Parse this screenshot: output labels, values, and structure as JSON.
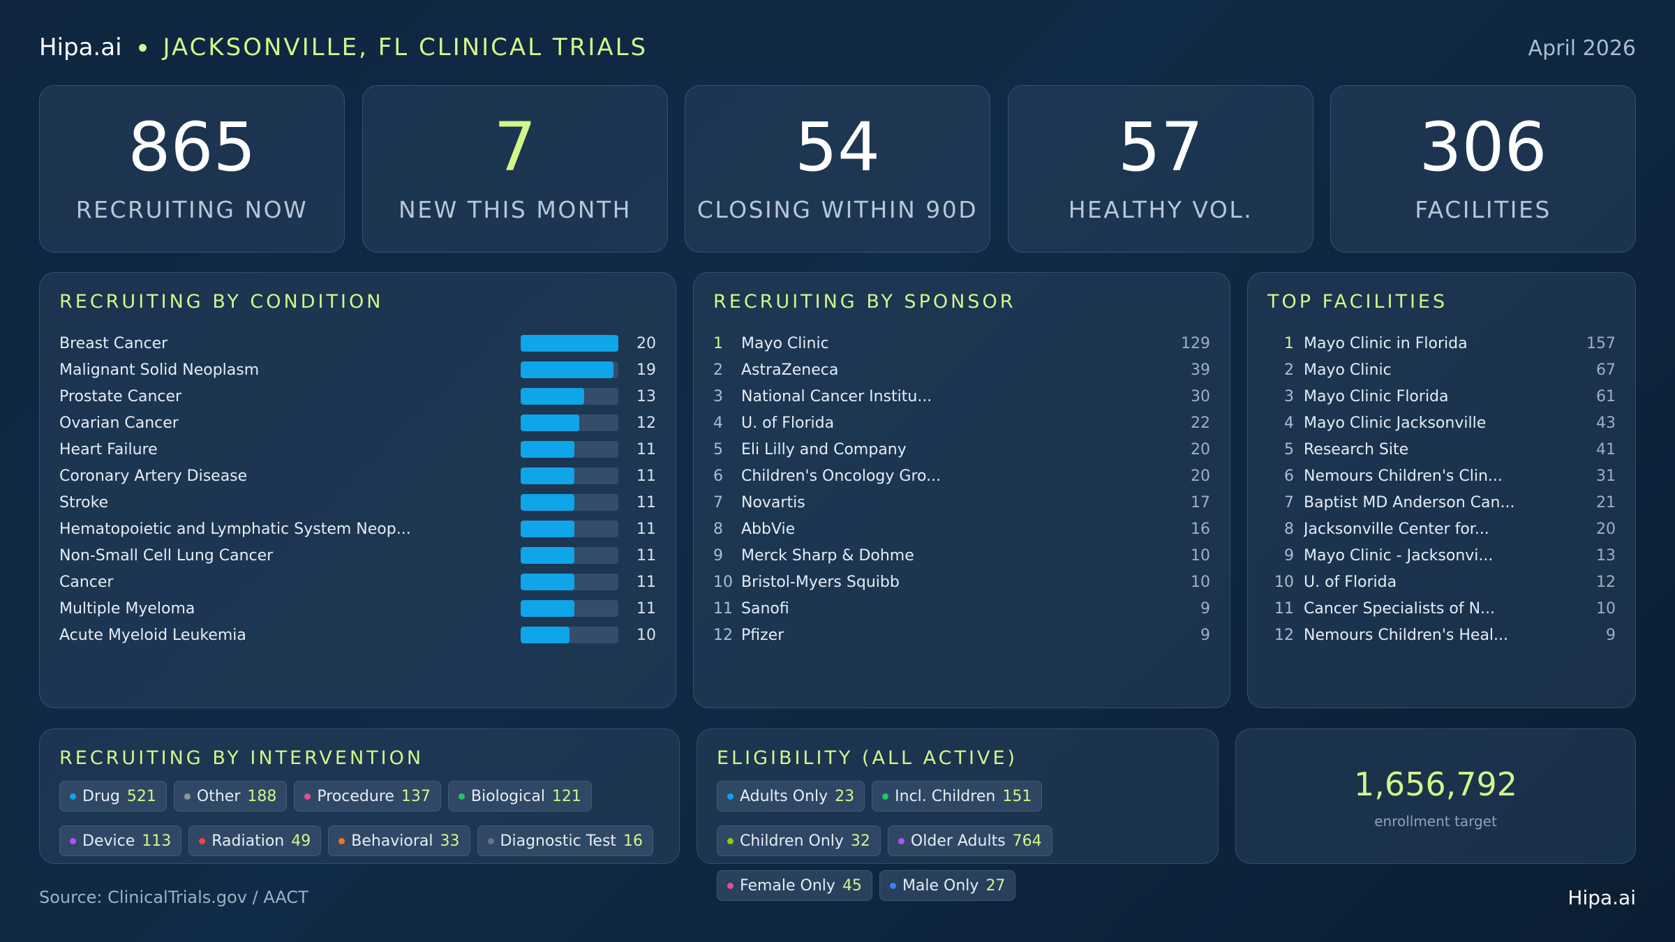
{
  "header": {
    "brand": "Hipa.ai",
    "title": "JACKSONVILLE, FL CLINICAL TRIALS",
    "date": "April 2026"
  },
  "stats": [
    {
      "value": "865",
      "label": "RECRUITING NOW",
      "accent": false
    },
    {
      "value": "7",
      "label": "NEW THIS MONTH",
      "accent": true
    },
    {
      "value": "54",
      "label": "CLOSING WITHIN 90D",
      "accent": false
    },
    {
      "value": "57",
      "label": "HEALTHY VOL.",
      "accent": false
    },
    {
      "value": "306",
      "label": "FACILITIES",
      "accent": false
    }
  ],
  "condition": {
    "title": "RECRUITING BY CONDITION",
    "max": 20,
    "items": [
      {
        "name": "Breast Cancer",
        "value": 20
      },
      {
        "name": "Malignant Solid Neoplasm",
        "value": 19
      },
      {
        "name": "Prostate Cancer",
        "value": 13
      },
      {
        "name": "Ovarian Cancer",
        "value": 12
      },
      {
        "name": "Heart Failure",
        "value": 11
      },
      {
        "name": "Coronary Artery Disease",
        "value": 11
      },
      {
        "name": "Stroke",
        "value": 11
      },
      {
        "name": "Hematopoietic and Lymphatic System Neop...",
        "value": 11
      },
      {
        "name": "Non-Small Cell Lung Cancer",
        "value": 11
      },
      {
        "name": "Cancer",
        "value": 11
      },
      {
        "name": "Multiple Myeloma",
        "value": 11
      },
      {
        "name": "Acute Myeloid Leukemia",
        "value": 10
      }
    ]
  },
  "sponsor": {
    "title": "RECRUITING BY SPONSOR",
    "items": [
      {
        "rank": "1",
        "name": "Mayo Clinic",
        "count": "129"
      },
      {
        "rank": "2",
        "name": "AstraZeneca",
        "count": "39"
      },
      {
        "rank": "3",
        "name": "National Cancer Institu...",
        "count": "30"
      },
      {
        "rank": "4",
        "name": "U. of Florida",
        "count": "22"
      },
      {
        "rank": "5",
        "name": "Eli Lilly and Company",
        "count": "20"
      },
      {
        "rank": "6",
        "name": "Children's Oncology Gro...",
        "count": "20"
      },
      {
        "rank": "7",
        "name": "Novartis",
        "count": "17"
      },
      {
        "rank": "8",
        "name": "AbbVie",
        "count": "16"
      },
      {
        "rank": "9",
        "name": "Merck Sharp & Dohme",
        "count": "10"
      },
      {
        "rank": "10",
        "name": "Bristol-Myers Squibb",
        "count": "10"
      },
      {
        "rank": "11",
        "name": "Sanofi",
        "count": "9"
      },
      {
        "rank": "12",
        "name": "Pfizer",
        "count": "9"
      }
    ]
  },
  "facilities": {
    "title": "TOP FACILITIES",
    "items": [
      {
        "rank": "1",
        "name": "Mayo Clinic in Florida",
        "count": "157"
      },
      {
        "rank": "2",
        "name": "Mayo Clinic",
        "count": "67"
      },
      {
        "rank": "3",
        "name": "Mayo Clinic Florida",
        "count": "61"
      },
      {
        "rank": "4",
        "name": "Mayo Clinic Jacksonville",
        "count": "43"
      },
      {
        "rank": "5",
        "name": "Research Site",
        "count": "41"
      },
      {
        "rank": "6",
        "name": "Nemours Children's Clin...",
        "count": "31"
      },
      {
        "rank": "7",
        "name": "Baptist MD Anderson Can...",
        "count": "21"
      },
      {
        "rank": "8",
        "name": "Jacksonville Center for...",
        "count": "20"
      },
      {
        "rank": "9",
        "name": "Mayo Clinic - Jacksonvi...",
        "count": "13"
      },
      {
        "rank": "10",
        "name": "U. of Florida",
        "count": "12"
      },
      {
        "rank": "11",
        "name": "Cancer Specialists of N...",
        "count": "10"
      },
      {
        "rank": "12",
        "name": "Nemours Children's Heal...",
        "count": "9"
      }
    ]
  },
  "intervention": {
    "title": "RECRUITING BY INTERVENTION",
    "items": [
      {
        "name": "Drug",
        "value": "521",
        "color": "#0ea5e9"
      },
      {
        "name": "Other",
        "value": "188",
        "color": "#8b949e"
      },
      {
        "name": "Procedure",
        "value": "137",
        "color": "#ec4899"
      },
      {
        "name": "Biological",
        "value": "121",
        "color": "#22c55e"
      },
      {
        "name": "Device",
        "value": "113",
        "color": "#a855f7"
      },
      {
        "name": "Radiation",
        "value": "49",
        "color": "#ef4444"
      },
      {
        "name": "Behavioral",
        "value": "33",
        "color": "#f97316"
      },
      {
        "name": "Diagnostic Test",
        "value": "16",
        "color": "#6b7280"
      }
    ]
  },
  "eligibility": {
    "title": "ELIGIBILITY (ALL ACTIVE)",
    "items": [
      {
        "name": "Adults Only",
        "value": "23",
        "color": "#0ea5e9"
      },
      {
        "name": "Incl. Children",
        "value": "151",
        "color": "#22c55e"
      },
      {
        "name": "Children Only",
        "value": "32",
        "color": "#84cc16"
      },
      {
        "name": "Older Adults",
        "value": "764",
        "color": "#a855f7"
      },
      {
        "name": "Female Only",
        "value": "45",
        "color": "#ec4899"
      },
      {
        "name": "Male Only",
        "value": "27",
        "color": "#3b82f6"
      }
    ]
  },
  "enrollment": {
    "value": "1,656,792",
    "label": "enrollment target"
  },
  "footer": {
    "source": "Source: ClinicalTrials.gov / AACT",
    "brand": "Hipa.ai"
  }
}
